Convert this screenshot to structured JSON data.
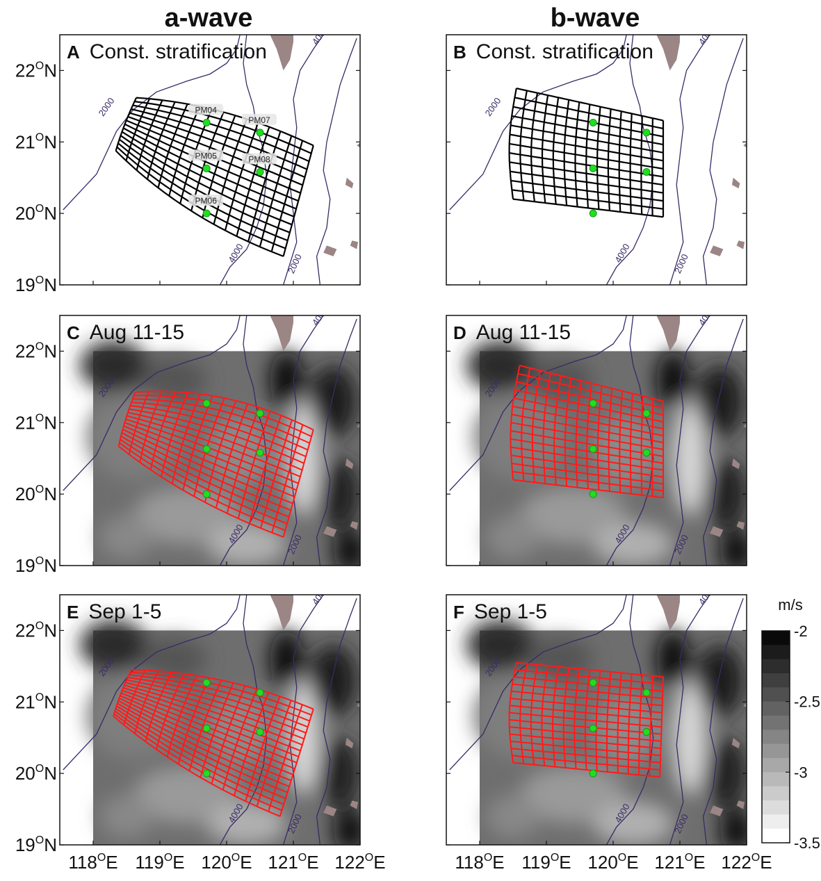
{
  "column_titles": [
    "a-wave",
    "b-wave"
  ],
  "axes": {
    "y_ticks": [
      {
        "value": 22,
        "deg": "22",
        "sup": "O",
        "hem": "N"
      },
      {
        "value": 21,
        "deg": "21",
        "sup": "O",
        "hem": "N"
      },
      {
        "value": 20,
        "deg": "20",
        "sup": "O",
        "hem": "N"
      },
      {
        "value": 19,
        "deg": "19",
        "sup": "O",
        "hem": "N"
      }
    ],
    "x_ticks": [
      {
        "value": 118,
        "deg": "118",
        "sup": "O",
        "hem": "E"
      },
      {
        "value": 119,
        "deg": "119",
        "sup": "O",
        "hem": "E"
      },
      {
        "value": 120,
        "deg": "120",
        "sup": "O",
        "hem": "E"
      },
      {
        "value": 121,
        "deg": "121",
        "sup": "O",
        "hem": "E"
      },
      {
        "value": 122,
        "deg": "122",
        "sup": "O",
        "hem": "E"
      }
    ],
    "lon_range": [
      117.5,
      122.0
    ],
    "lat_range": [
      19.0,
      22.5
    ]
  },
  "panels": [
    {
      "letter": "A",
      "title": "Const. stratification",
      "wave": "a-wave",
      "background": "none",
      "ray_color": "#000000"
    },
    {
      "letter": "B",
      "title": "Const. stratification",
      "wave": "b-wave",
      "background": "none",
      "ray_color": "#000000"
    },
    {
      "letter": "C",
      "title": "Aug 11-15",
      "wave": "a-wave",
      "background": "speed-field",
      "ray_color": "#ff1a1a"
    },
    {
      "letter": "D",
      "title": "Aug 11-15",
      "wave": "b-wave",
      "background": "speed-field",
      "ray_color": "#ff1a1a"
    },
    {
      "letter": "E",
      "title": "Sep 1-5",
      "wave": "a-wave",
      "background": "speed-field",
      "ray_color": "#ff1a1a"
    },
    {
      "letter": "F",
      "title": "Sep 1-5",
      "wave": "b-wave",
      "background": "speed-field",
      "ray_color": "#ff1a1a"
    }
  ],
  "stations": [
    {
      "name": "PM04",
      "lon": 119.7,
      "lat": 21.27
    },
    {
      "name": "PM05",
      "lon": 119.7,
      "lat": 20.63
    },
    {
      "name": "PM06",
      "lon": 119.7,
      "lat": 20.0
    },
    {
      "name": "PM07",
      "lon": 120.5,
      "lat": 21.13
    },
    {
      "name": "PM08",
      "lon": 120.5,
      "lat": 20.58
    }
  ],
  "contour_labels": [
    "2000",
    "4000"
  ],
  "colorbar": {
    "unit": "m/s",
    "ticks": [
      "-2",
      "-2.5",
      "-3",
      "-3.5"
    ],
    "range": [
      -3.5,
      -2.0
    ]
  },
  "colors": {
    "station": "#22dd22",
    "contour": "#3a2a66",
    "land": "#9b8585",
    "ray_black": "#000000",
    "ray_red": "#ff1a1a"
  }
}
